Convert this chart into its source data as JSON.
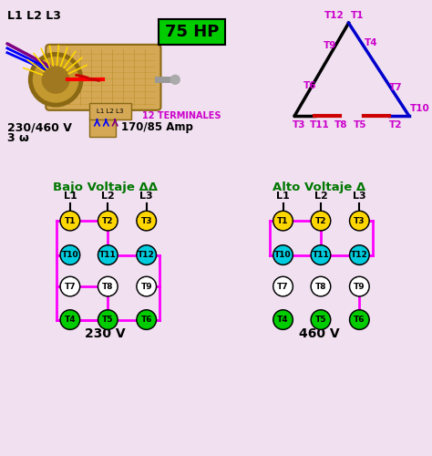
{
  "bg_color": "#f0e0f0",
  "title_hp": "75 HP",
  "title_hp_bg": "#00cc00",
  "title_hp_color": "black",
  "motor_text": "L1 L2 L3",
  "spec_voltage": "230/460 V",
  "spec_phase": "3 ω",
  "spec_terminals": "12 TERMINALES",
  "spec_amp": "170/85 Amp",
  "bajo_title": "Bajo Voltaje ΔΔ",
  "alto_title": "Alto Voltaje Δ",
  "v230": "230 V",
  "v460": "460 V",
  "color_yellow": "#FFD700",
  "color_cyan": "#00CCDD",
  "color_white": "#FFFFFF",
  "color_green": "#00CC00",
  "color_magenta": "#FF00FF",
  "color_black": "#000000",
  "color_dark_green": "#007700",
  "color_blue": "#0000CC",
  "color_red": "#CC0000",
  "color_purple": "#CC00CC",
  "color_motor_body": "#D4A855",
  "color_motor_edge": "#8B6914"
}
